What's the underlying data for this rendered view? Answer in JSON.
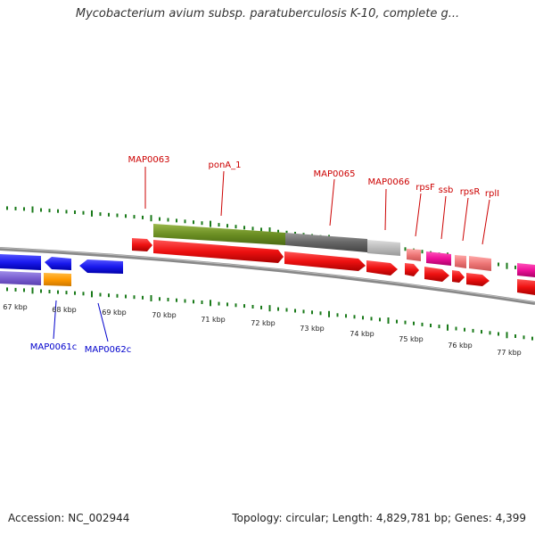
{
  "title": "Mycobacterium avium subsp. paratuberculosis K-10, complete g...",
  "accession": "Accession: NC_002944",
  "summary": "Topology: circular; Length: 4,829,781 bp; Genes: 4,399",
  "forward_labels": [
    {
      "id": "map0063",
      "text": "MAP0063"
    },
    {
      "id": "pona1",
      "text": "ponA_1"
    },
    {
      "id": "map0065",
      "text": "MAP0065"
    },
    {
      "id": "map0066",
      "text": "MAP0066"
    },
    {
      "id": "rpsf",
      "text": "rpsF"
    },
    {
      "id": "ssb",
      "text": "ssb"
    },
    {
      "id": "rpsr",
      "text": "rpsR"
    },
    {
      "id": "rpli",
      "text": "rplI"
    }
  ],
  "reverse_labels": [
    {
      "id": "map0061c",
      "text": "MAP0061c"
    },
    {
      "id": "map0062c",
      "text": "MAP0062c"
    }
  ],
  "kbp_labels": [
    "67 kbp",
    "68 kbp",
    "69 kbp",
    "70 kbp",
    "71 kbp",
    "72 kbp",
    "73 kbp",
    "74 kbp",
    "75 kbp",
    "76 kbp",
    "77 kbp"
  ],
  "colors": {
    "forward_cds": "#ee1111",
    "reverse_cds": "#1a1aee",
    "gene_green": "#6b8e23",
    "gene_gray": "#666666",
    "gene_lightgray": "#bbbbbb",
    "gene_pink": "#ee1199",
    "gene_salmon": "#ee7777",
    "gene_orange": "#ff9900",
    "gene_purple": "#7a5fd0",
    "tick_green": "#1a7a1a",
    "backbone": "#888888"
  }
}
